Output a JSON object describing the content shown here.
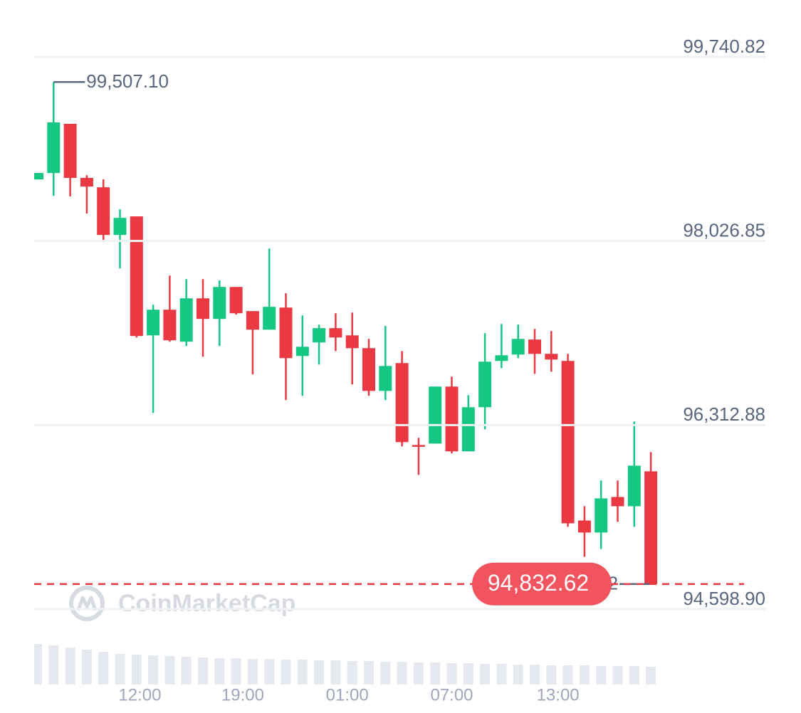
{
  "chart_data": {
    "type": "candlestick",
    "up_color": "#16c784",
    "down_color": "#ea3943",
    "volume_color": "#e6e9f0",
    "grid": true,
    "ylim": [
      94598.9,
      99740.82
    ],
    "yticks": [
      {
        "value": 94598.9,
        "label": "94,598.90"
      },
      {
        "value": 96312.88,
        "label": "96,312.88"
      },
      {
        "value": 98026.85,
        "label": "98,026.85"
      },
      {
        "value": 99740.82,
        "label": "99,740.82"
      }
    ],
    "xticks": [
      {
        "value": 6.2,
        "label": "12:00"
      },
      {
        "value": 12.4,
        "label": "19:00"
      },
      {
        "value": 18.7,
        "label": "01:00"
      },
      {
        "value": 25.0,
        "label": "07:00"
      },
      {
        "value": 31.4,
        "label": "13:00"
      }
    ],
    "candles": [
      {
        "open": 98600,
        "high": 98660,
        "low": 98600,
        "close": 98660
      },
      {
        "open": 98660,
        "high": 99507.1,
        "low": 98448,
        "close": 99131
      },
      {
        "open": 99118,
        "high": 99118,
        "low": 98441,
        "close": 98614
      },
      {
        "open": 98614,
        "high": 98640,
        "low": 98282,
        "close": 98534
      },
      {
        "open": 98527,
        "high": 98600,
        "low": 98017,
        "close": 98083
      },
      {
        "open": 98083,
        "high": 98322,
        "low": 97772,
        "close": 98242
      },
      {
        "open": 98256,
        "high": 98256,
        "low": 97128,
        "close": 97142
      },
      {
        "open": 97148,
        "high": 97433,
        "low": 96426,
        "close": 97387
      },
      {
        "open": 97387,
        "high": 97705,
        "low": 97089,
        "close": 97102
      },
      {
        "open": 97089,
        "high": 97672,
        "low": 97049,
        "close": 97493
      },
      {
        "open": 97493,
        "high": 97672,
        "low": 96949,
        "close": 97301
      },
      {
        "open": 97301,
        "high": 97659,
        "low": 97049,
        "close": 97599
      },
      {
        "open": 97599,
        "high": 97599,
        "low": 97341,
        "close": 97354
      },
      {
        "open": 97374,
        "high": 97374,
        "low": 96784,
        "close": 97201
      },
      {
        "open": 97201,
        "high": 97957,
        "low": 97201,
        "close": 97414
      },
      {
        "open": 97407,
        "high": 97540,
        "low": 96545,
        "close": 96936
      },
      {
        "open": 96956,
        "high": 97334,
        "low": 96585,
        "close": 97042
      },
      {
        "open": 97082,
        "high": 97248,
        "low": 96876,
        "close": 97215
      },
      {
        "open": 97215,
        "high": 97354,
        "low": 97002,
        "close": 97128
      },
      {
        "open": 97148,
        "high": 97360,
        "low": 96691,
        "close": 97029
      },
      {
        "open": 97029,
        "high": 97115,
        "low": 96585,
        "close": 96631
      },
      {
        "open": 96631,
        "high": 97235,
        "low": 96545,
        "close": 96863
      },
      {
        "open": 96890,
        "high": 97002,
        "low": 96114,
        "close": 96154
      },
      {
        "open": 96127,
        "high": 96194,
        "low": 95849,
        "close": 96114
      },
      {
        "open": 96140,
        "high": 96671,
        "low": 96140,
        "close": 96671
      },
      {
        "open": 96671,
        "high": 96764,
        "low": 96048,
        "close": 96068
      },
      {
        "open": 96068,
        "high": 96591,
        "low": 96068,
        "close": 96479
      },
      {
        "open": 96479,
        "high": 97168,
        "low": 96273,
        "close": 96903
      },
      {
        "open": 96910,
        "high": 97254,
        "low": 96843,
        "close": 96963
      },
      {
        "open": 96969,
        "high": 97248,
        "low": 96936,
        "close": 97115
      },
      {
        "open": 97109,
        "high": 97208,
        "low": 96790,
        "close": 96976
      },
      {
        "open": 96976,
        "high": 97188,
        "low": 96810,
        "close": 96923
      },
      {
        "open": 96910,
        "high": 96976,
        "low": 95365,
        "close": 95398
      },
      {
        "open": 95424,
        "high": 95557,
        "low": 95086,
        "close": 95312
      },
      {
        "open": 95312,
        "high": 95796,
        "low": 95159,
        "close": 95630
      },
      {
        "open": 95643,
        "high": 95796,
        "low": 95411,
        "close": 95557
      },
      {
        "open": 95557,
        "high": 96346,
        "low": 95365,
        "close": 95935
      },
      {
        "open": 95882,
        "high": 96061,
        "low": 94832.62,
        "close": 94832.62
      }
    ],
    "volume": [
      57,
      55,
      52,
      49,
      46,
      43,
      42,
      41,
      40,
      39,
      38,
      37,
      37,
      36,
      36,
      35,
      35,
      34,
      34,
      33,
      33,
      32,
      32,
      31,
      31,
      30,
      30,
      29,
      29,
      28,
      28,
      27,
      27,
      27,
      26,
      26,
      26,
      25
    ],
    "vlim": [
      0,
      60
    ],
    "high_label": "99,507.10",
    "low_label": "94,832.62",
    "last_price": 94832.62,
    "last_price_label": "94,832.62",
    "watermark": "CoinMarketCap"
  }
}
